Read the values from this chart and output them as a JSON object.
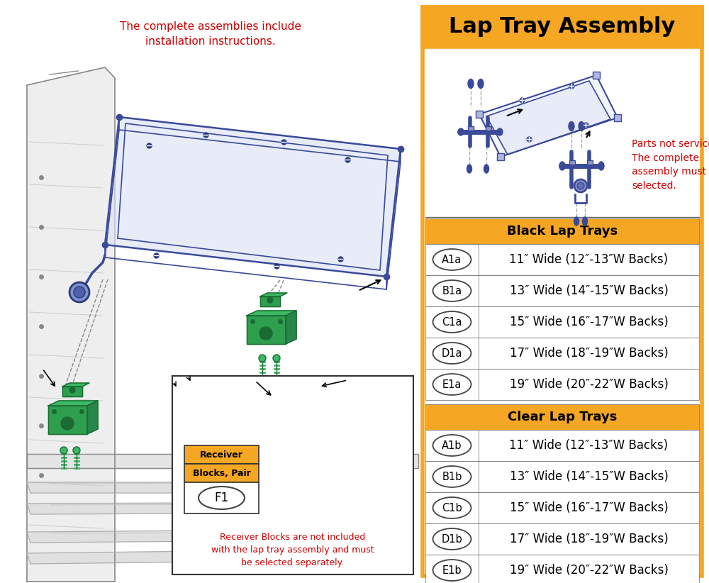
{
  "title": "Lap Tray Assembly",
  "title_bg": "#F5A623",
  "title_color": "#000000",
  "outer_border_color": "#F5A623",
  "left_annotation": "The complete assemblies include\ninstallation instructions.",
  "left_annotation_color": "#CC0000",
  "parts_not_serviceable": "Parts not serviceable.\nThe complete\nassembly must be\nselected.",
  "parts_not_serviceable_color": "#CC0000",
  "black_section_header": "Black Lap Trays",
  "black_section_bg": "#F5A623",
  "clear_section_header": "Clear Lap Trays",
  "clear_section_bg": "#F5A623",
  "section_header_color": "#000000",
  "black_rows": [
    {
      "code": "A1a",
      "desc": "11″ Wide (12″-13″W Backs)"
    },
    {
      "code": "B1a",
      "desc": "13″ Wide (14″-15″W Backs)"
    },
    {
      "code": "C1a",
      "desc": "15″ Wide (16″-17″W Backs)"
    },
    {
      "code": "D1a",
      "desc": "17″ Wide (18″-19″W Backs)"
    },
    {
      "code": "E1a",
      "desc": "19″ Wide (20″-22″W Backs)"
    }
  ],
  "clear_rows": [
    {
      "code": "A1b",
      "desc": "11″ Wide (12″-13″W Backs)"
    },
    {
      "code": "B1b",
      "desc": "13″ Wide (14″-15″W Backs)"
    },
    {
      "code": "C1b",
      "desc": "15″ Wide (16″-17″W Backs)"
    },
    {
      "code": "D1b",
      "desc": "17″ Wide (18″-19″W Backs)"
    },
    {
      "code": "E1b",
      "desc": "19″ Wide (20″-22″W Backs)"
    }
  ],
  "receiver_label_line1": "Receiver",
  "receiver_label_line2": "Blocks, Pair",
  "receiver_label_bg": "#F5A623",
  "receiver_code": "F1",
  "receiver_note": "Receiver Blocks are not included\nwith the lap tray assembly and must\nbe selected separately.",
  "receiver_note_color": "#CC0000",
  "row_line_color": "#AAAAAA",
  "table_border_color": "#666666",
  "code_oval_color": "#444444",
  "bg_color": "#FFFFFF",
  "drawing_line_color": "#888888",
  "tray_color": "#3A4A99",
  "green_color": "#2E9E4F",
  "green_dark": "#1A6B33"
}
